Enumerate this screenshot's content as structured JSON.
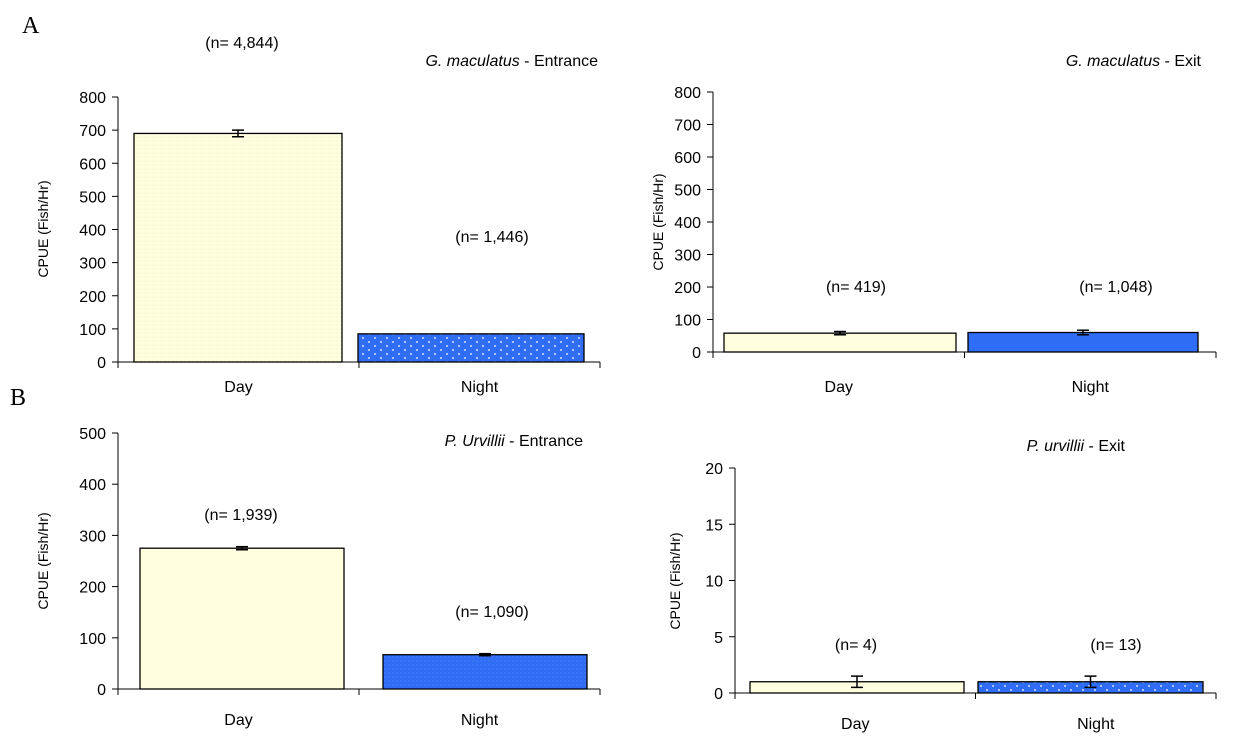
{
  "panel_labels": {
    "a": "A",
    "b": "B"
  },
  "colors": {
    "day": "#ffffe0",
    "night": "#2f6df5",
    "axis": "#000000",
    "bar_stroke": "#000000"
  },
  "chart_data": [
    {
      "type": "bar",
      "title_species": "G. maculatus",
      "title_suffix": " - Entrance",
      "categories": [
        "Day",
        "Night"
      ],
      "values": [
        690,
        85
      ],
      "errors": [
        10,
        0
      ],
      "n_labels": [
        "(n= 4,844)",
        "(n= 1,446)"
      ],
      "ylabel": "CPUE (Fish/Hr)",
      "ylim": [
        0,
        800
      ],
      "yticks": [
        "0",
        "100",
        "200",
        "300",
        "400",
        "500",
        "600",
        "700",
        "800"
      ],
      "patterns": [
        "dots-fine",
        "dots-white"
      ]
    },
    {
      "type": "bar",
      "title_species": "G. maculatus",
      "title_suffix": " - Exit",
      "categories": [
        "Day",
        "Night"
      ],
      "values": [
        58,
        60
      ],
      "errors": [
        5,
        7
      ],
      "n_labels": [
        "(n= 419)",
        "(n= 1,048)"
      ],
      "ylabel": "CPUE (Fish/Hr)",
      "ylim": [
        0,
        800
      ],
      "yticks": [
        "0",
        "100",
        "200",
        "300",
        "400",
        "500",
        "600",
        "700",
        "800"
      ],
      "patterns": [
        "none",
        "none"
      ]
    },
    {
      "type": "bar",
      "title_species": "P. Urvillii",
      "title_suffix": " - Entrance",
      "categories": [
        "Day",
        "Night"
      ],
      "values": [
        275,
        67
      ],
      "errors": [
        3,
        2
      ],
      "n_labels": [
        "(n= 1,939)",
        "(n= 1,090)"
      ],
      "ylabel": "CPUE (Fish/Hr)",
      "ylim": [
        0,
        500
      ],
      "yticks": [
        "0",
        "100",
        "200",
        "300",
        "400",
        "500"
      ],
      "patterns": [
        "none",
        "dots-fine"
      ]
    },
    {
      "type": "bar",
      "title_species": "P. urvillii",
      "title_suffix": " - Exit",
      "categories": [
        "Day",
        "Night"
      ],
      "values": [
        1,
        1
      ],
      "errors": [
        0.5,
        0.5
      ],
      "n_labels": [
        "(n= 4)",
        "(n= 13)"
      ],
      "ylabel": "CPUE (Fish/Hr)",
      "ylim": [
        0,
        20
      ],
      "yticks": [
        "0",
        "5",
        "10",
        "15",
        "20"
      ],
      "patterns": [
        "none",
        "dots-white"
      ]
    }
  ]
}
